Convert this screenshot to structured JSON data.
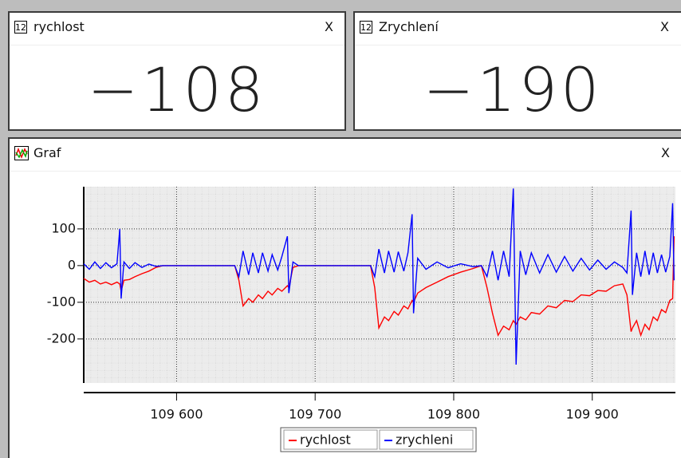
{
  "widgets": [
    {
      "icon_label": "12",
      "title": "rychlost",
      "close": "X",
      "value": "−108"
    },
    {
      "icon_label": "12",
      "title": "Zrychlení",
      "close": "X",
      "value": "−190"
    }
  ],
  "graph_panel": {
    "title": "Graf",
    "close": "X"
  },
  "chart_data": {
    "type": "line",
    "xlim": [
      109533,
      109960
    ],
    "ylim": [
      -320,
      215
    ],
    "yticks": [
      100,
      0,
      -100,
      -200
    ],
    "xticks": [
      {
        "value": 109600,
        "label": "109 600"
      },
      {
        "value": 109700,
        "label": "109 700"
      },
      {
        "value": 109800,
        "label": "109 800"
      },
      {
        "value": 109900,
        "label": "109 900"
      }
    ],
    "grid": true,
    "legend": "bottom",
    "x": [
      109533,
      109537,
      109541,
      109545,
      109549,
      109553,
      109557,
      109559,
      109560,
      109562,
      109566,
      109570,
      109575,
      109580,
      109585,
      109590,
      109642,
      109645,
      109648,
      109652,
      109655,
      109659,
      109662,
      109666,
      109669,
      109673,
      109676,
      109680,
      109681,
      109684,
      109688,
      109740,
      109743,
      109746,
      109750,
      109753,
      109757,
      109760,
      109764,
      109767,
      109770,
      109771,
      109774,
      109780,
      109788,
      109796,
      109805,
      109814,
      109820,
      109824,
      109828,
      109832,
      109836,
      109840,
      109843,
      109845,
      109848,
      109852,
      109856,
      109862,
      109868,
      109874,
      109880,
      109886,
      109892,
      109898,
      109904,
      109910,
      109916,
      109922,
      109925,
      109928,
      109929,
      109932,
      109935,
      109938,
      109941,
      109944,
      109947,
      109950,
      109953,
      109956,
      109958,
      109959
    ],
    "series": [
      {
        "name": "rychlost",
        "color": "#ff0000",
        "values": [
          -35,
          -45,
          -40,
          -50,
          -45,
          -52,
          -45,
          -50,
          -70,
          -40,
          -38,
          -30,
          -22,
          -15,
          -5,
          0,
          0,
          -40,
          -110,
          -90,
          -100,
          -80,
          -90,
          -70,
          -80,
          -62,
          -70,
          -55,
          -60,
          -5,
          0,
          0,
          -60,
          -170,
          -140,
          -150,
          -125,
          -135,
          -110,
          -118,
          -95,
          -100,
          -75,
          -60,
          -45,
          -30,
          -18,
          -8,
          0,
          -60,
          -130,
          -190,
          -165,
          -175,
          -150,
          -160,
          -140,
          -148,
          -128,
          -132,
          -110,
          -115,
          -95,
          -98,
          -80,
          -82,
          -68,
          -70,
          -55,
          -50,
          -80,
          -180,
          -170,
          -150,
          -190,
          -160,
          -175,
          -140,
          -150,
          -120,
          -128,
          -95,
          -90,
          80
        ]
      },
      {
        "name": "zrychleni",
        "color": "#0000ff",
        "values": [
          5,
          -10,
          10,
          -8,
          8,
          -6,
          5,
          100,
          -90,
          10,
          -8,
          8,
          -5,
          4,
          -2,
          0,
          0,
          -30,
          40,
          -25,
          35,
          -20,
          35,
          -15,
          30,
          -12,
          25,
          80,
          -75,
          10,
          0,
          0,
          -30,
          45,
          -20,
          40,
          -18,
          38,
          -15,
          35,
          140,
          -130,
          20,
          -10,
          10,
          -6,
          5,
          -3,
          0,
          -30,
          40,
          -40,
          40,
          -30,
          210,
          -270,
          40,
          -25,
          35,
          -20,
          30,
          -18,
          25,
          -15,
          20,
          -12,
          15,
          -10,
          10,
          -5,
          -20,
          150,
          -80,
          35,
          -30,
          40,
          -25,
          35,
          -20,
          30,
          -18,
          25,
          170,
          -40
        ]
      }
    ]
  }
}
